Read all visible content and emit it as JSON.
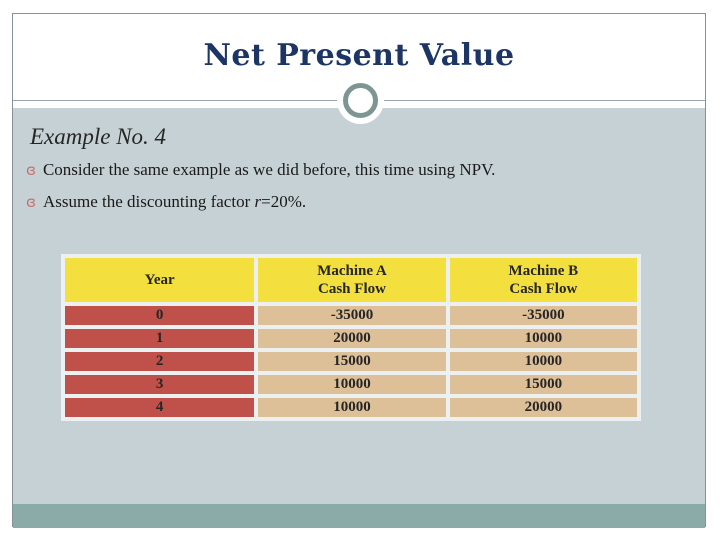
{
  "slide": {
    "title": "Net Present Value",
    "subtitle": "Example No. 4",
    "bullet_glyph": "ɞ",
    "bullets": {
      "first": "Consider the same example as we did before, this time using NPV.",
      "second_prefix": "Assume the discounting factor ",
      "second_var": "r",
      "second_suffix": "=20%."
    }
  },
  "table": {
    "headers": {
      "year": "Year",
      "machine_a_line1": "Machine A",
      "machine_a_line2": "Cash Flow",
      "machine_b_line1": "Machine B",
      "machine_b_line2": "Cash Flow"
    },
    "rows": [
      {
        "year": "0",
        "machine_a": "-35000",
        "machine_b": "-35000"
      },
      {
        "year": "1",
        "machine_a": "20000",
        "machine_b": "10000"
      },
      {
        "year": "2",
        "machine_a": "15000",
        "machine_b": "10000"
      },
      {
        "year": "3",
        "machine_a": "10000",
        "machine_b": "15000"
      },
      {
        "year": "4",
        "machine_a": "10000",
        "machine_b": "20000"
      }
    ]
  },
  "colors": {
    "title_navy": "#1c3564",
    "frame_border_gray": "#849195",
    "content_bg_bluegray": "#c6d1d5",
    "footer_teal": "#8aaba8",
    "header_yellow": "#f3df3e",
    "year_red": "#c0514a",
    "value_tan": "#ddbf98",
    "bullet_salmon": "#c1766d",
    "ornament_ring_gray": "#7e9693"
  }
}
